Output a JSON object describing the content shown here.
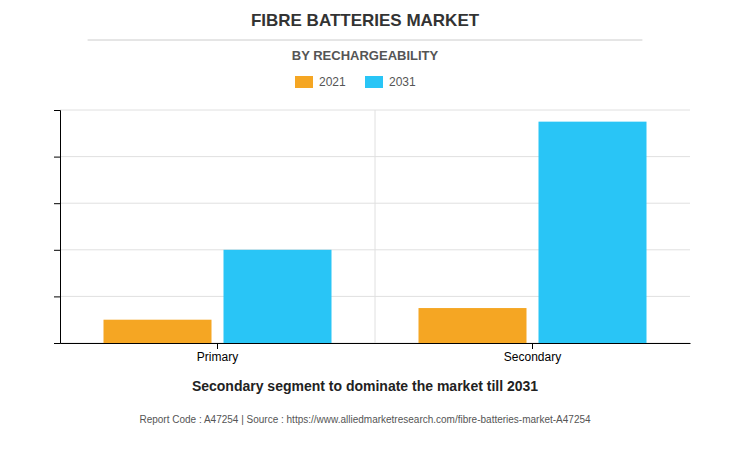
{
  "chart_data": {
    "type": "bar",
    "title": "FIBRE BATTERIES MARKET",
    "subtitle": "BY RECHARGEABILITY",
    "categories": [
      "Primary",
      "Secondary"
    ],
    "series": [
      {
        "name": "2021",
        "color": "#F5A623",
        "values": [
          10,
          15
        ]
      },
      {
        "name": "2031",
        "color": "#29C5F6",
        "values": [
          40,
          95
        ]
      }
    ],
    "ylim": [
      0,
      100
    ],
    "yticks": [
      0,
      20,
      40,
      60,
      80,
      100
    ],
    "grid": true,
    "legend": "top",
    "tick_labels": "x",
    "annotations": [
      "Secondary segment to dominate the market till 2031",
      "Report Code : A47254  |  Source : https://www.alliedmarketresearch.com/fibre-batteries-market-A47254"
    ]
  }
}
